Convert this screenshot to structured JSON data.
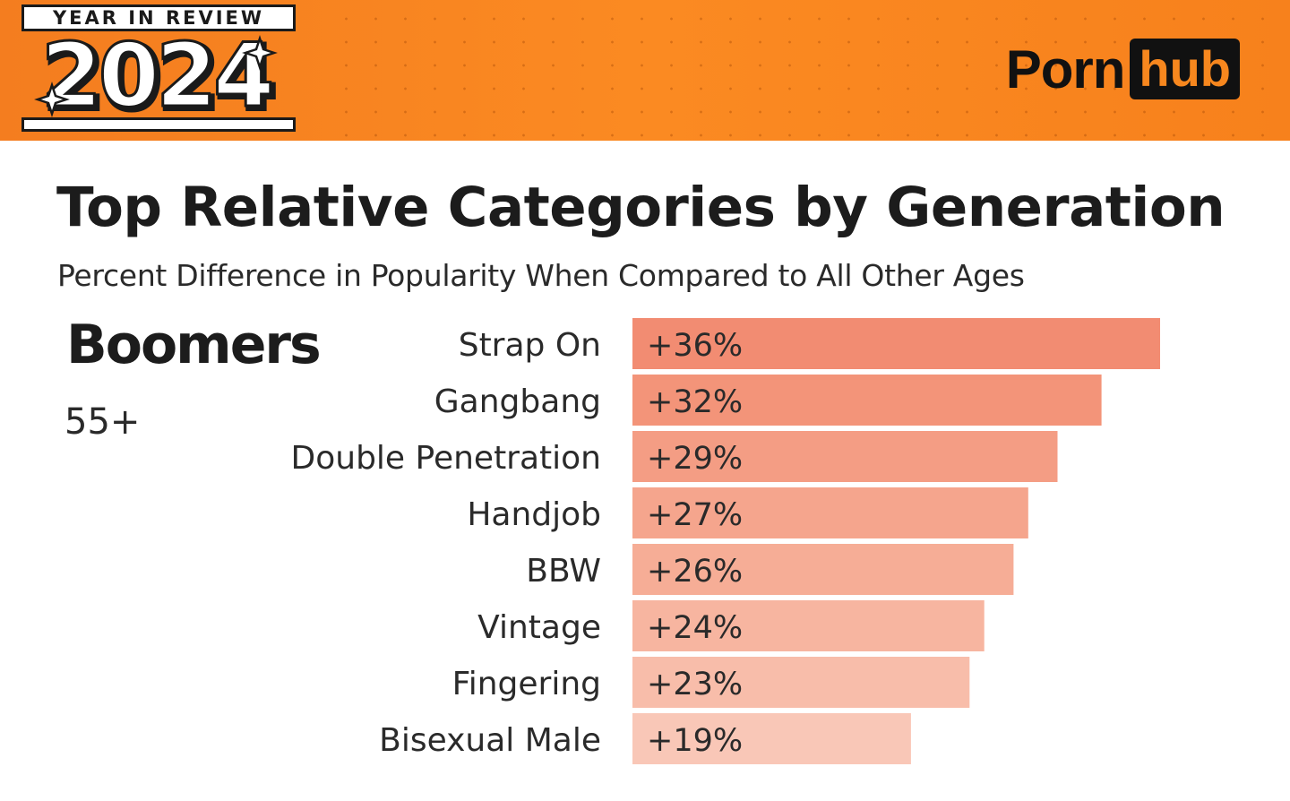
{
  "banner": {
    "year_in_review": "YEAR IN REVIEW",
    "year": "2024",
    "logo_left": "Porn",
    "logo_right": "hub",
    "colors": {
      "orange": "#f7841e",
      "dark": "#111111"
    }
  },
  "heading": {
    "title": "Top Relative Categories by Generation",
    "subtitle": "Percent Difference in Popularity When Compared to All Other Ages"
  },
  "generation": {
    "name": "Boomers",
    "age": "55+"
  },
  "chart_data": {
    "type": "bar",
    "orientation": "horizontal",
    "categories": [
      "Strap On",
      "Gangbang",
      "Double Penetration",
      "Handjob",
      "BBW",
      "Vintage",
      "Fingering",
      "Bisexual Male"
    ],
    "values": [
      36,
      32,
      29,
      27,
      26,
      24,
      23,
      19
    ],
    "data_labels": [
      "+36%",
      "+32%",
      "+29%",
      "+27%",
      "+26%",
      "+24%",
      "+23%",
      "+19%"
    ],
    "unit": "%",
    "bar_colors": [
      "#f28c72",
      "#f39479",
      "#f49d84",
      "#f5a58d",
      "#f6ad96",
      "#f7b5a0",
      "#f8bdaa",
      "#f9c7b7"
    ],
    "grid": false,
    "legend": "none"
  }
}
